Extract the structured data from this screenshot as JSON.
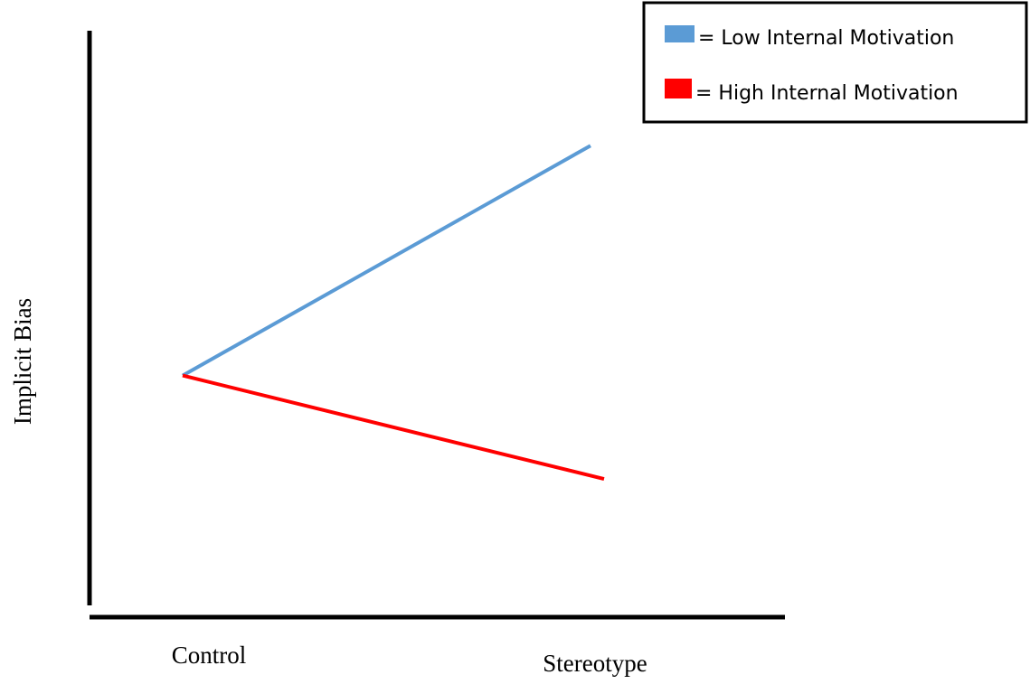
{
  "chart_data": {
    "type": "line",
    "title": "",
    "xlabel": "",
    "ylabel": "Implicit Bias",
    "categories": [
      "Control",
      "Stereotype"
    ],
    "ylim": [
      0,
      10
    ],
    "grid": false,
    "legend_position": "top-right",
    "legend_framed": true,
    "series": [
      {
        "name": "= Low Internal Motivation",
        "values": [
          4.0,
          8.0
        ],
        "color": "#5b9bd5"
      },
      {
        "name": "= High Internal Motivation",
        "values": [
          4.0,
          2.2
        ],
        "color": "#ff0000"
      }
    ]
  }
}
